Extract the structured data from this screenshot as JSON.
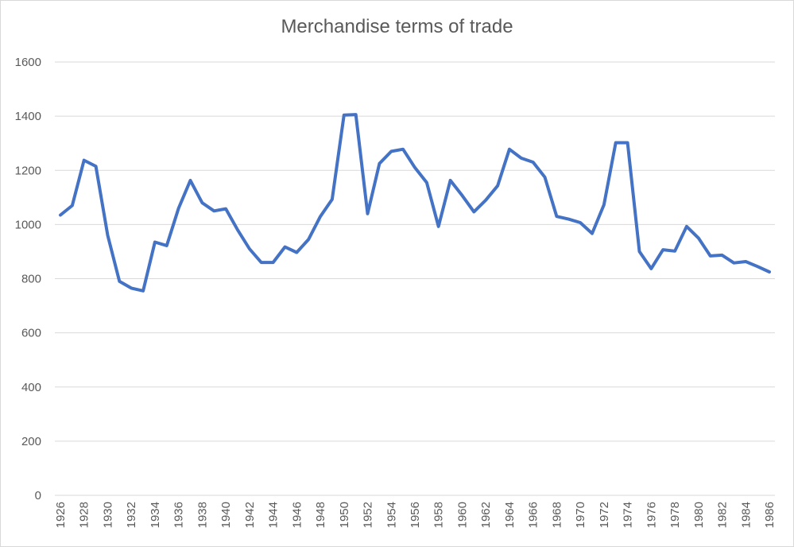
{
  "chart_data": {
    "type": "line",
    "title": "Merchandise terms of trade",
    "xlabel": "",
    "ylabel": "",
    "ylim": [
      0,
      1600
    ],
    "yticks": [
      0,
      200,
      400,
      600,
      800,
      1000,
      1200,
      1400,
      1600
    ],
    "grid": "horizontal",
    "legend": "none",
    "line_color": "#4472C4",
    "grid_color": "#d9d9d9",
    "x": [
      1926,
      1927,
      1928,
      1929,
      1930,
      1931,
      1932,
      1933,
      1934,
      1935,
      1936,
      1937,
      1938,
      1939,
      1940,
      1941,
      1942,
      1943,
      1944,
      1945,
      1946,
      1947,
      1948,
      1949,
      1950,
      1951,
      1952,
      1953,
      1954,
      1955,
      1956,
      1957,
      1958,
      1959,
      1960,
      1961,
      1962,
      1963,
      1964,
      1965,
      1966,
      1967,
      1968,
      1969,
      1970,
      1971,
      1972,
      1973,
      1974,
      1975,
      1976,
      1977,
      1978,
      1979,
      1980,
      1981,
      1982,
      1983,
      1984,
      1985,
      1986
    ],
    "xtick_labels": [
      "1926",
      "1928",
      "1930",
      "1932",
      "1934",
      "1936",
      "1938",
      "1940",
      "1942",
      "1944",
      "1946",
      "1948",
      "1950",
      "1952",
      "1954",
      "1956",
      "1958",
      "1960",
      "1962",
      "1964",
      "1966",
      "1968",
      "1970",
      "1972",
      "1974",
      "1976",
      "1978",
      "1980",
      "1982",
      "1984",
      "1986"
    ],
    "series": [
      {
        "values": [
          1035,
          1070,
          1237,
          1215,
          960,
          790,
          765,
          755,
          935,
          922,
          1060,
          1163,
          1080,
          1050,
          1058,
          980,
          910,
          860,
          860,
          917,
          897,
          945,
          1030,
          1093,
          1404,
          1406,
          1040,
          1225,
          1270,
          1278,
          1210,
          1155,
          993,
          1163,
          1107,
          1047,
          1090,
          1143,
          1278,
          1245,
          1230,
          1175,
          1030,
          1020,
          1007,
          967,
          1073,
          1302,
          1302,
          900,
          837,
          907,
          902,
          993,
          950,
          884,
          887,
          858,
          863,
          845,
          825
        ]
      }
    ]
  }
}
